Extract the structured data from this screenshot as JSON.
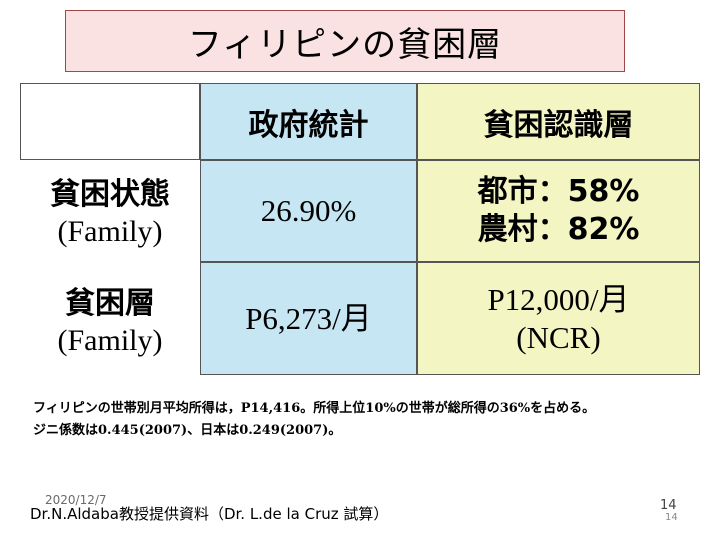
{
  "slide": {
    "title": "フィリピンの貧困層",
    "table": {
      "headers": [
        "政府統計",
        "貧困認識層"
      ],
      "rows": [
        {
          "label_jp": "貧困状態",
          "label_en": "(Family)",
          "gov": "26.90%",
          "perceived": [
            "都市：58%",
            "農村：82%"
          ]
        },
        {
          "label_jp": "貧困層",
          "label_en": "(Family)",
          "gov": "P6,273/月",
          "perceived": [
            "P12,000/月",
            "(NCR)"
          ]
        }
      ]
    },
    "note": [
      "フィリピンの世帯別月平均所得は，P14,416。所得上位10%の世帯が総所得の36%を占める。",
      "ジニ係数は0.445(2007)、日本は0.249(2007)。"
    ],
    "footer": {
      "date": "2020/12/7",
      "credit": "Dr.N.Aldaba教授提供資料（Dr. L.de la Cruz 試算）",
      "page": "14",
      "page_small": "14"
    }
  }
}
